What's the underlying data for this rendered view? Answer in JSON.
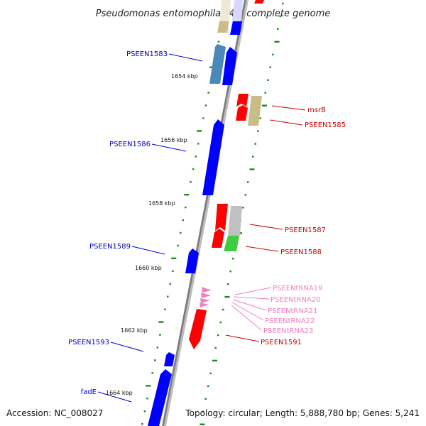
{
  "title": "Pseudomonas entomophila L48, complete genome",
  "accession": "Accession: NC_008027",
  "topology": "Topology: circular; Length: 5,888,780 bp; Genes: 5,241",
  "colors": {
    "forward_gene": "#0000ff",
    "reverse_gene": "#ff0000",
    "trna": "#f080c0",
    "backbone": "#8a8a8a",
    "ticks": "#1a8a1a",
    "khaki": "#c8bc88",
    "steel": "#4a88b8",
    "grey": "#c0c0c0",
    "green": "#40cc40"
  },
  "kbp_labels": [
    {
      "text": "1654 kbp",
      "kbp": 1654
    },
    {
      "text": "1656 kbp",
      "kbp": 1656
    },
    {
      "text": "1658 kbp",
      "kbp": 1658
    },
    {
      "text": "1660 kbp",
      "kbp": 1660
    },
    {
      "text": "1662 kbp",
      "kbp": 1662
    },
    {
      "text": "1664 kbp",
      "kbp": 1664
    }
  ],
  "left_labels": [
    {
      "text": "PSEEN1583",
      "color": "#0000cc"
    },
    {
      "text": "PSEEN1586",
      "color": "#0000cc"
    },
    {
      "text": "PSEEN1589",
      "color": "#0000cc"
    },
    {
      "text": "PSEEN1593",
      "color": "#0000cc"
    },
    {
      "text": "fadE",
      "color": "#0000cc"
    }
  ],
  "right_labels": [
    {
      "text": "msrB",
      "color": "#cc0000"
    },
    {
      "text": "PSEEN1585",
      "color": "#cc0000"
    },
    {
      "text": "PSEEN1587",
      "color": "#cc0000"
    },
    {
      "text": "PSEEN1588",
      "color": "#cc0000"
    },
    {
      "text": "PSEENtRNA19",
      "color": "#f080c0"
    },
    {
      "text": "PSEENtRNA20",
      "color": "#f080c0"
    },
    {
      "text": "PSEENtRNA21",
      "color": "#f080c0"
    },
    {
      "text": "PSEENtRNA22",
      "color": "#f080c0"
    },
    {
      "text": "PSEENtRNA23",
      "color": "#f080c0"
    },
    {
      "text": "PSEEN1591",
      "color": "#cc0000"
    }
  ]
}
